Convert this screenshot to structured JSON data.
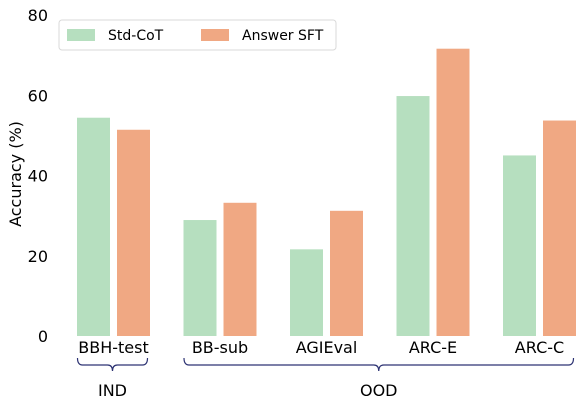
{
  "chart_data": {
    "type": "bar",
    "title": "",
    "xlabel": "",
    "ylabel": "Accuracy (%)",
    "ylim": [
      0,
      80
    ],
    "yticks": [
      0,
      20,
      40,
      60,
      80
    ],
    "grid": false,
    "legend_position": "top-left",
    "categories": [
      "BBH-test",
      "BB-sub",
      "AGIEval",
      "ARC-E",
      "ARC-C"
    ],
    "series": [
      {
        "name": "Std-CoT",
        "color": "#b6dfbf",
        "values": [
          54.4,
          28.9,
          21.6,
          59.8,
          45.0
        ]
      },
      {
        "name": "Answer SFT",
        "color": "#f0a883",
        "values": [
          51.4,
          33.2,
          31.2,
          71.6,
          53.7
        ]
      }
    ],
    "groups": [
      {
        "label": "IND",
        "from": 0,
        "to": 0
      },
      {
        "label": "OOD",
        "from": 1,
        "to": 4
      }
    ],
    "bracket_color": "#2d3373"
  }
}
